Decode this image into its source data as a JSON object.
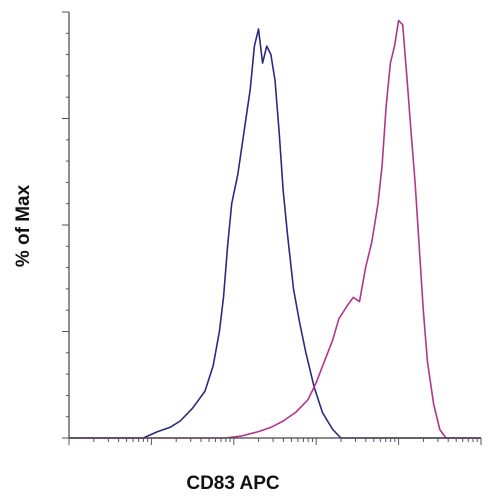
{
  "chart_data": {
    "type": "area",
    "title": "",
    "xlabel": "CD83 APC",
    "ylabel": "% of Max",
    "xlim": [
      0,
      1
    ],
    "ylim": [
      0,
      100
    ],
    "grid": false,
    "legend": "none",
    "x_scale": "log",
    "series": [
      {
        "color": "#2b2a7e",
        "points": [
          [
            0.0,
            0
          ],
          [
            0.12,
            0
          ],
          [
            0.18,
            0
          ],
          [
            0.215,
            1.5
          ],
          [
            0.245,
            2.5
          ],
          [
            0.27,
            4
          ],
          [
            0.3,
            7
          ],
          [
            0.33,
            11
          ],
          [
            0.35,
            17
          ],
          [
            0.365,
            25
          ],
          [
            0.375,
            33
          ],
          [
            0.385,
            45
          ],
          [
            0.395,
            55
          ],
          [
            0.41,
            62
          ],
          [
            0.425,
            72
          ],
          [
            0.44,
            82
          ],
          [
            0.45,
            92
          ],
          [
            0.46,
            96
          ],
          [
            0.47,
            88
          ],
          [
            0.48,
            92
          ],
          [
            0.49,
            90
          ],
          [
            0.5,
            84
          ],
          [
            0.51,
            72
          ],
          [
            0.52,
            58
          ],
          [
            0.53,
            48
          ],
          [
            0.545,
            35
          ],
          [
            0.56,
            27
          ],
          [
            0.575,
            20
          ],
          [
            0.595,
            12
          ],
          [
            0.615,
            6
          ],
          [
            0.64,
            2
          ],
          [
            0.66,
            0
          ],
          [
            1.0,
            0
          ]
        ]
      },
      {
        "color": "#b0358f",
        "points": [
          [
            0.0,
            0
          ],
          [
            0.38,
            0
          ],
          [
            0.42,
            0.5
          ],
          [
            0.46,
            1.5
          ],
          [
            0.49,
            2.5
          ],
          [
            0.52,
            4
          ],
          [
            0.55,
            6
          ],
          [
            0.58,
            9
          ],
          [
            0.6,
            13
          ],
          [
            0.62,
            18
          ],
          [
            0.64,
            23
          ],
          [
            0.655,
            28
          ],
          [
            0.675,
            31
          ],
          [
            0.69,
            33
          ],
          [
            0.705,
            32
          ],
          [
            0.72,
            40
          ],
          [
            0.735,
            46
          ],
          [
            0.75,
            55
          ],
          [
            0.76,
            64
          ],
          [
            0.77,
            78
          ],
          [
            0.78,
            88
          ],
          [
            0.79,
            92
          ],
          [
            0.8,
            98
          ],
          [
            0.81,
            97
          ],
          [
            0.82,
            85
          ],
          [
            0.83,
            72
          ],
          [
            0.84,
            60
          ],
          [
            0.85,
            45
          ],
          [
            0.86,
            30
          ],
          [
            0.87,
            18
          ],
          [
            0.885,
            8
          ],
          [
            0.9,
            2
          ],
          [
            0.915,
            0
          ],
          [
            1.0,
            0
          ]
        ]
      }
    ]
  }
}
